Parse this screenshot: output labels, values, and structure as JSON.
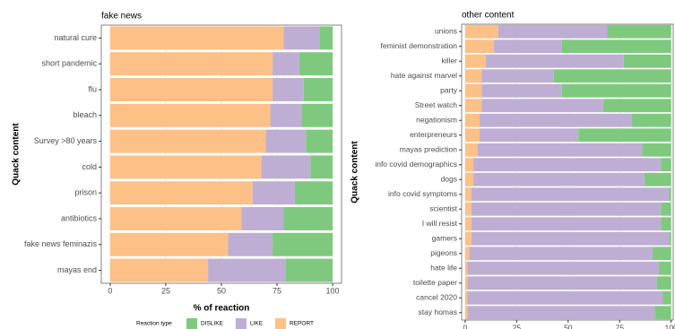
{
  "chart_data": [
    {
      "type": "bar",
      "orientation": "horizontal",
      "stacked": true,
      "title": "fake news",
      "xlabel": "% of reaction",
      "ylabel": "Quack content",
      "categories": [
        "natural cure",
        "short pandemic",
        "flu",
        "bleach",
        "Survey >80 years",
        "cold",
        "prison",
        "antibiotics",
        "fake news feminazis",
        "mayas end"
      ],
      "series": [
        {
          "name": "REPORT",
          "color": "#fdc086",
          "values": [
            78,
            73,
            73,
            72,
            70,
            68,
            64,
            59,
            53,
            44
          ]
        },
        {
          "name": "LIKE",
          "color": "#beaed4",
          "values": [
            16,
            12,
            14,
            14,
            18,
            22,
            19,
            19,
            20,
            35
          ]
        },
        {
          "name": "DISLIKE",
          "color": "#7fc97f",
          "values": [
            6,
            15,
            13,
            14,
            12,
            10,
            17,
            22,
            27,
            21
          ]
        }
      ],
      "xlim": [
        -4,
        104
      ],
      "xticks": [
        0,
        25,
        50,
        75,
        100
      ],
      "grid": true,
      "legend_title": "Reaction type",
      "legend_position": "bottom",
      "legend_order": [
        2,
        1,
        0
      ]
    },
    {
      "type": "bar",
      "orientation": "horizontal",
      "stacked": true,
      "title": "other content",
      "xlabel": "% of reaction",
      "ylabel": "Quack content",
      "categories": [
        "unions",
        "feminist demonstration",
        "killer",
        "hate against marvel",
        "party",
        "Street watch",
        "negationism",
        "enterpreneurs",
        "mayas prediction",
        "info covid demographics",
        "dogs",
        "info covid symptoms",
        "scientist",
        "I will resist",
        "gamers",
        "pigeons",
        "hate life",
        "toilette paper",
        "cancel 2020",
        "stay homas"
      ],
      "series": [
        {
          "name": "REPORT",
          "color": "#fdc086",
          "values": [
            16,
            14,
            10,
            8,
            8,
            8,
            7,
            7,
            6,
            4,
            4,
            3,
            3,
            3,
            3,
            2,
            1,
            1,
            1,
            1
          ]
        },
        {
          "name": "LIKE",
          "color": "#beaed4",
          "values": [
            53,
            33,
            67,
            35,
            39,
            59,
            74,
            48,
            80,
            91,
            83,
            96,
            92,
            92,
            96,
            89,
            93,
            92,
            95,
            91
          ]
        },
        {
          "name": "DISLIKE",
          "color": "#7fc97f",
          "values": [
            31,
            53,
            23,
            57,
            53,
            33,
            19,
            45,
            14,
            5,
            13,
            1,
            5,
            5,
            1,
            9,
            6,
            7,
            4,
            8
          ]
        }
      ],
      "xlim": [
        -1.7,
        101
      ],
      "xticks": [
        0,
        25,
        50,
        75,
        100
      ],
      "grid": true
    }
  ]
}
